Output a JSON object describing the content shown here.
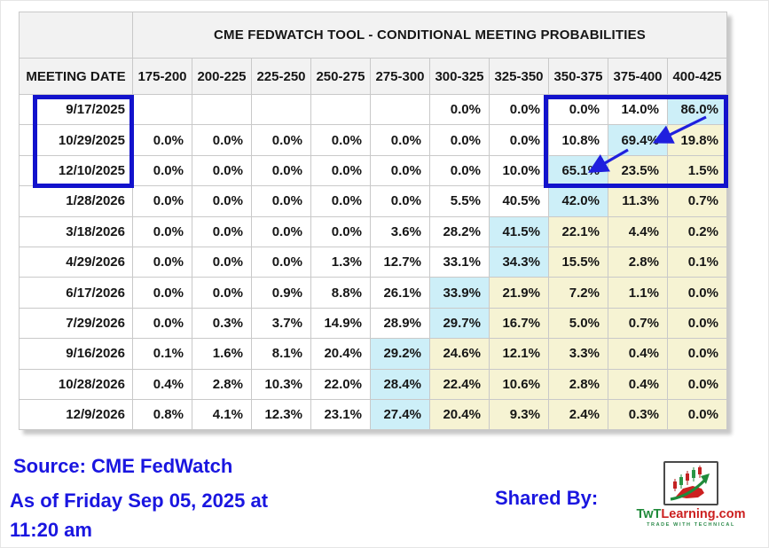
{
  "chart_data": {
    "type": "table",
    "title": "CME FEDWATCH TOOL - CONDITIONAL MEETING PROBABILITIES",
    "row_label": "MEETING DATE",
    "columns": [
      "175-200",
      "200-225",
      "225-250",
      "250-275",
      "275-300",
      "300-325",
      "325-350",
      "350-375",
      "375-400",
      "400-425"
    ],
    "highlight_legend": {
      "b": "cyan highlight (highest probability)",
      "y": "pale yellow highlight"
    },
    "rows": [
      {
        "date": "9/17/2025",
        "values": [
          "",
          "",
          "",
          "",
          "",
          "0.0%",
          "0.0%",
          "0.0%",
          "14.0%",
          "86.0%"
        ],
        "highlights": [
          "",
          "",
          "",
          "",
          "",
          "",
          "",
          "",
          "",
          "b"
        ]
      },
      {
        "date": "10/29/2025",
        "values": [
          "0.0%",
          "0.0%",
          "0.0%",
          "0.0%",
          "0.0%",
          "0.0%",
          "0.0%",
          "10.8%",
          "69.4%",
          "19.8%"
        ],
        "highlights": [
          "",
          "",
          "",
          "",
          "",
          "",
          "",
          "",
          "b",
          "y"
        ]
      },
      {
        "date": "12/10/2025",
        "values": [
          "0.0%",
          "0.0%",
          "0.0%",
          "0.0%",
          "0.0%",
          "0.0%",
          "10.0%",
          "65.1%",
          "23.5%",
          "1.5%"
        ],
        "highlights": [
          "",
          "",
          "",
          "",
          "",
          "",
          "",
          "b",
          "y",
          "y"
        ]
      },
      {
        "date": "1/28/2026",
        "values": [
          "0.0%",
          "0.0%",
          "0.0%",
          "0.0%",
          "0.0%",
          "5.5%",
          "40.5%",
          "42.0%",
          "11.3%",
          "0.7%"
        ],
        "highlights": [
          "",
          "",
          "",
          "",
          "",
          "",
          "",
          "b",
          "y",
          "y"
        ]
      },
      {
        "date": "3/18/2026",
        "values": [
          "0.0%",
          "0.0%",
          "0.0%",
          "0.0%",
          "3.6%",
          "28.2%",
          "41.5%",
          "22.1%",
          "4.4%",
          "0.2%"
        ],
        "highlights": [
          "",
          "",
          "",
          "",
          "",
          "",
          "b",
          "y",
          "y",
          "y"
        ]
      },
      {
        "date": "4/29/2026",
        "values": [
          "0.0%",
          "0.0%",
          "0.0%",
          "1.3%",
          "12.7%",
          "33.1%",
          "34.3%",
          "15.5%",
          "2.8%",
          "0.1%"
        ],
        "highlights": [
          "",
          "",
          "",
          "",
          "",
          "",
          "b",
          "y",
          "y",
          "y"
        ]
      },
      {
        "date": "6/17/2026",
        "values": [
          "0.0%",
          "0.0%",
          "0.9%",
          "8.8%",
          "26.1%",
          "33.9%",
          "21.9%",
          "7.2%",
          "1.1%",
          "0.0%"
        ],
        "highlights": [
          "",
          "",
          "",
          "",
          "",
          "b",
          "y",
          "y",
          "y",
          "y"
        ]
      },
      {
        "date": "7/29/2026",
        "values": [
          "0.0%",
          "0.3%",
          "3.7%",
          "14.9%",
          "28.9%",
          "29.7%",
          "16.7%",
          "5.0%",
          "0.7%",
          "0.0%"
        ],
        "highlights": [
          "",
          "",
          "",
          "",
          "",
          "b",
          "y",
          "y",
          "y",
          "y"
        ]
      },
      {
        "date": "9/16/2026",
        "values": [
          "0.1%",
          "1.6%",
          "8.1%",
          "20.4%",
          "29.2%",
          "24.6%",
          "12.1%",
          "3.3%",
          "0.4%",
          "0.0%"
        ],
        "highlights": [
          "",
          "",
          "",
          "",
          "b",
          "y",
          "y",
          "y",
          "y",
          "y"
        ]
      },
      {
        "date": "10/28/2026",
        "values": [
          "0.4%",
          "2.8%",
          "10.3%",
          "22.0%",
          "28.4%",
          "22.4%",
          "10.6%",
          "2.8%",
          "0.4%",
          "0.0%"
        ],
        "highlights": [
          "",
          "",
          "",
          "",
          "b",
          "y",
          "y",
          "y",
          "y",
          "y"
        ]
      },
      {
        "date": "12/9/2026",
        "values": [
          "0.8%",
          "4.1%",
          "12.3%",
          "23.1%",
          "27.4%",
          "20.4%",
          "9.3%",
          "2.4%",
          "0.3%",
          "0.0%"
        ],
        "highlights": [
          "",
          "",
          "",
          "",
          "b",
          "y",
          "y",
          "y",
          "y",
          "y"
        ]
      }
    ],
    "annotations": {
      "boxed_dates": [
        "9/17/2025",
        "10/29/2025",
        "12/10/2025"
      ],
      "boxed_rate_ranges": [
        "350-375",
        "375-400",
        "400-425"
      ],
      "arrows": [
        {
          "from_cell": "9/17/2025 @ 400-425 (86.0%)",
          "to_cell": "10/29/2025 @ 375-400 (69.4%)"
        },
        {
          "from_cell": "10/29/2025 @ 375-400 (69.4%)",
          "to_cell": "12/10/2025 @ 350-375 (65.1%)"
        }
      ]
    }
  },
  "footer": {
    "source_line": "Source: CME FedWatch",
    "asof_line1": "As of Friday Sep 05, 2025 at",
    "asof_line2": "11:20 am",
    "shared_by": "Shared By:"
  },
  "logo": {
    "name_green": "TwT",
    "name_red": "Learning.com",
    "tagline": "TRADE WITH TECHNICAL"
  },
  "colors": {
    "highlight_blue": "#cdeff8",
    "highlight_yellow": "#f6f3d3",
    "box_blue": "#1212cc",
    "arrow_blue": "#1f1fde",
    "footer_blue": "#1a16e0",
    "header_bg": "#f2f2f2"
  }
}
